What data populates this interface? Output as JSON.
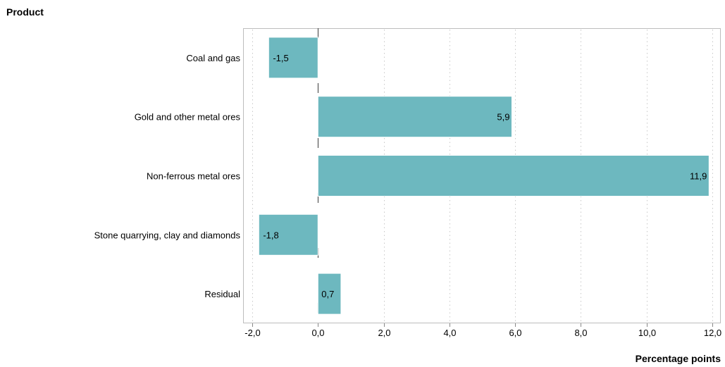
{
  "chart_data": {
    "type": "bar",
    "orientation": "horizontal",
    "title": "",
    "ylabel": "Product",
    "xlabel": "Percentage points",
    "categories": [
      "Coal and gas",
      "Gold and other metal ores",
      "Non-ferrous metal ores",
      "Stone quarrying, clay and diamonds",
      "Residual"
    ],
    "values": [
      -1.5,
      5.9,
      11.9,
      -1.8,
      0.7
    ],
    "data_labels": [
      "-1,5",
      "5,9",
      "11,9",
      "-1,8",
      "0,7"
    ],
    "xlim": [
      -2.0,
      12.0
    ],
    "x_ticks": [
      -2.0,
      0.0,
      2.0,
      4.0,
      6.0,
      8.0,
      10.0,
      12.0
    ],
    "x_tick_labels": [
      "-2,0",
      "0,0",
      "2,0",
      "4,0",
      "6,0",
      "8,0",
      "10,0",
      "12,0"
    ],
    "grid": "vertical dotted",
    "bar_color": "#6db8bf",
    "legend": "none"
  }
}
